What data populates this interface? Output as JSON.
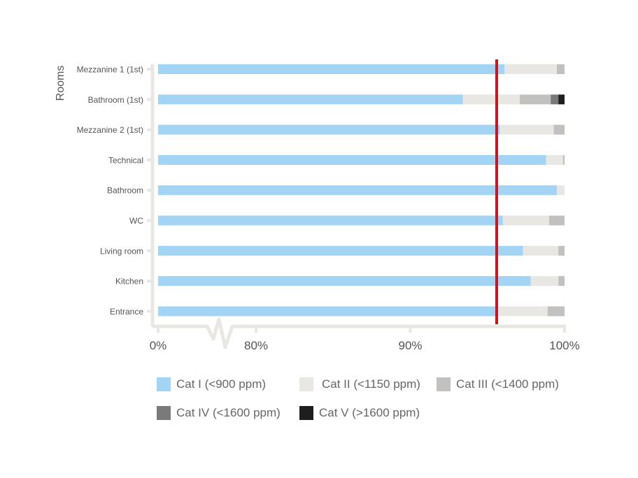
{
  "chart_data": {
    "type": "bar",
    "orientation": "horizontal-stacked",
    "title": "",
    "xlabel": "",
    "ylabel": "Rooms",
    "x_ticks": [
      "0%",
      "80%",
      "90%",
      "100%"
    ],
    "x_axis_break": "between 0% and 80%",
    "xlim": [
      80,
      100
    ],
    "reference_line": {
      "value": 95.6,
      "color": "#cc1422"
    },
    "categories": [
      "Mezzanine 1 (1st)",
      "Bathroom (1st)",
      "Mezzanine 2 (1st)",
      "Technical",
      "Bathroom",
      "WC",
      "Living room",
      "Kitchen",
      "Entrance"
    ],
    "series": [
      {
        "name": "Cat I (<900 ppm)",
        "color": "#a3d4f3",
        "values": [
          96.1,
          93.4,
          95.8,
          98.8,
          99.5,
          96.0,
          97.3,
          97.8,
          95.7
        ]
      },
      {
        "name": "Cat II (<1150 ppm)",
        "color": "#e8e7e3",
        "values": [
          3.4,
          3.7,
          3.5,
          1.1,
          0.5,
          3.0,
          2.3,
          1.8,
          3.2
        ]
      },
      {
        "name": "Cat III (<1400 ppm)",
        "color": "#c2c1bf",
        "values": [
          0.5,
          2.0,
          0.7,
          0.1,
          0.0,
          1.0,
          0.4,
          0.4,
          1.1
        ]
      },
      {
        "name": "Cat IV (<1600 ppm)",
        "color": "#7a7a7a",
        "values": [
          0,
          0.5,
          0,
          0,
          0,
          0,
          0,
          0,
          0
        ]
      },
      {
        "name": "Cat V (>1600 ppm)",
        "color": "#1e1e1e",
        "values": [
          0,
          0.4,
          0,
          0,
          0,
          0,
          0,
          0,
          0
        ]
      }
    ],
    "legend_position": "bottom",
    "grid": false
  },
  "axis": {
    "ylabel": "Rooms",
    "ticks": [
      "0%",
      "80%",
      "90%",
      "100%"
    ]
  },
  "legend": [
    {
      "label": "Cat I (<900 ppm)",
      "color": "#a3d4f3"
    },
    {
      "label": "Cat II (<1150 ppm)",
      "color": "#e8e7e3"
    },
    {
      "label": "Cat III (<1400 ppm)",
      "color": "#c2c1bf"
    },
    {
      "label": "Cat IV (<1600 ppm)",
      "color": "#7a7a7a"
    },
    {
      "label": "Cat V (>1600 ppm)",
      "color": "#1e1e1e"
    }
  ]
}
